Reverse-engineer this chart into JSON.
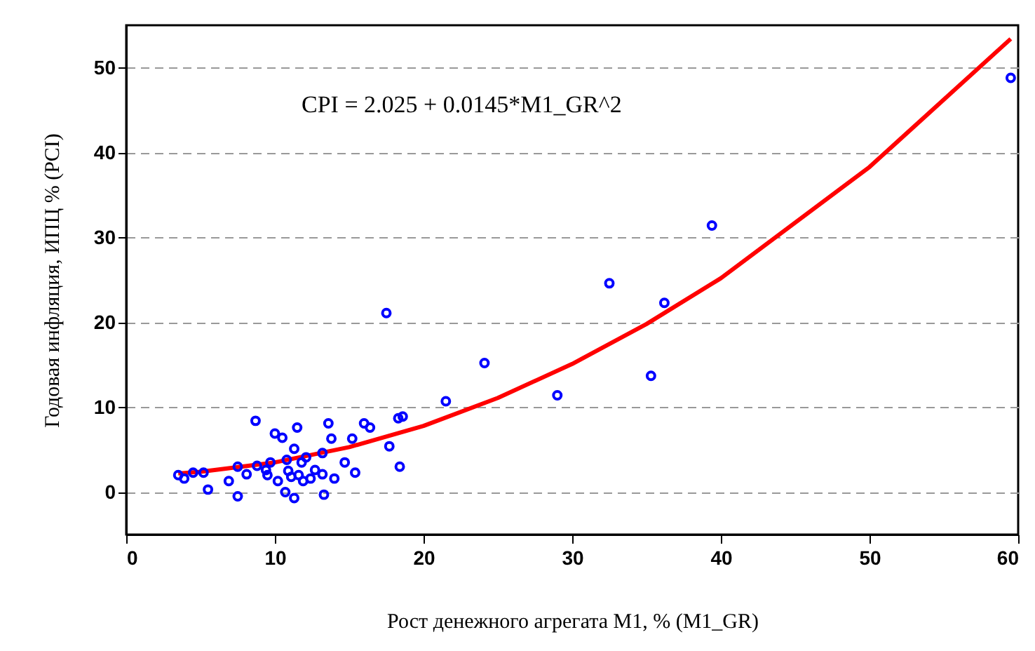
{
  "chart_data": {
    "type": "scatter",
    "xlabel": "Рост денежного агрегата M1, %   (M1_GR)",
    "ylabel": "Годовая инфляция, ИПЦ % (PCI)",
    "annotations": [
      "CPI = 2.025 + 0.0145*M1_GR^2"
    ],
    "xlim": [
      0,
      60
    ],
    "xticks": [
      0,
      10,
      20,
      30,
      40,
      50,
      60
    ],
    "ylim": [
      -5,
      55
    ],
    "yticks": [
      0,
      10,
      20,
      30,
      40,
      50
    ],
    "grid": "y",
    "marker": "circle",
    "series": [
      {
        "color": "#0000ff",
        "x": [
          3.5,
          3.9,
          4.5,
          5.2,
          5.5,
          6.9,
          7.5,
          7.5,
          8.1,
          8.7,
          8.8,
          9.4,
          9.5,
          9.7,
          10.0,
          10.2,
          10.5,
          10.7,
          10.8,
          10.9,
          11.1,
          11.3,
          11.3,
          11.5,
          11.6,
          11.8,
          11.9,
          12.1,
          12.4,
          12.7,
          13.2,
          13.2,
          13.3,
          13.6,
          13.8,
          14.0,
          14.7,
          15.2,
          15.4,
          16.0,
          16.4,
          17.7,
          17.5,
          18.3,
          18.6,
          18.4,
          21.5,
          24.1,
          29.0,
          32.5,
          35.3,
          36.2,
          39.4,
          59.5
        ],
        "values": [
          2.0,
          1.6,
          2.3,
          2.3,
          0.3,
          1.3,
          -0.5,
          3.0,
          2.1,
          8.4,
          3.1,
          2.6,
          2.0,
          3.5,
          6.9,
          1.3,
          6.4,
          0.0,
          3.8,
          2.5,
          1.8,
          -0.7,
          5.1,
          7.6,
          2.0,
          3.5,
          1.3,
          4.1,
          1.6,
          2.6,
          2.1,
          4.6,
          -0.3,
          8.1,
          6.3,
          1.6,
          3.5,
          6.3,
          2.3,
          8.1,
          7.6,
          5.4,
          21.1,
          8.7,
          8.9,
          3.0,
          10.7,
          15.2,
          11.4,
          24.6,
          13.7,
          22.3,
          31.4,
          48.8
        ]
      },
      {
        "type": "line",
        "color": "#ff0000",
        "line_style": "solid",
        "marker": "none",
        "x": [
          3.5,
          5,
          10,
          15,
          20,
          25,
          30,
          35,
          40,
          50,
          59.5
        ],
        "values": [
          2.2,
          2.4,
          3.5,
          5.3,
          7.8,
          11.1,
          15.1,
          19.8,
          25.2,
          38.3,
          53.4
        ]
      }
    ]
  }
}
